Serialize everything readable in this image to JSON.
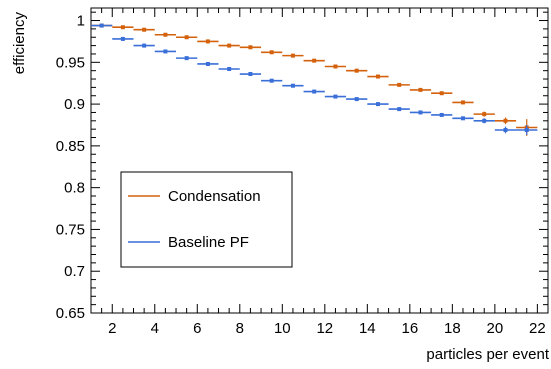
{
  "chart_data": {
    "type": "scatter",
    "title": "",
    "xlabel": "particles per event",
    "ylabel": "efficiency",
    "xlim": [
      1,
      22.5
    ],
    "ylim": [
      0.65,
      1.015
    ],
    "x_ticks": [
      2,
      4,
      6,
      8,
      10,
      12,
      14,
      16,
      18,
      20,
      22
    ],
    "y_ticks": [
      0.65,
      0.7,
      0.75,
      0.8,
      0.85,
      0.9,
      0.95,
      1
    ],
    "y_tick_labels": [
      "0.65",
      "0.7",
      "0.75",
      "0.8",
      "0.85",
      "0.9",
      "0.95",
      "1"
    ],
    "grid": false,
    "legend_position": "lower-left",
    "series": [
      {
        "name": "Condensation",
        "color": "#d4620d",
        "bin_width": 1,
        "x": [
          1.5,
          2.5,
          3.5,
          4.5,
          5.5,
          6.5,
          7.5,
          8.5,
          9.5,
          10.5,
          11.5,
          12.5,
          13.5,
          14.5,
          15.5,
          16.5,
          17.5,
          18.5,
          19.5,
          20.5,
          21.5
        ],
        "y": [
          0.994,
          0.992,
          0.989,
          0.983,
          0.98,
          0.975,
          0.97,
          0.968,
          0.962,
          0.958,
          0.952,
          0.945,
          0.94,
          0.933,
          0.923,
          0.917,
          0.913,
          0.902,
          0.888,
          0.88,
          0.872
        ],
        "err": [
          0.001,
          0.001,
          0.001,
          0.001,
          0.001,
          0.001,
          0.001,
          0.001,
          0.001,
          0.001,
          0.001,
          0.001,
          0.001,
          0.001,
          0.001,
          0.002,
          0.002,
          0.002,
          0.003,
          0.004,
          0.01
        ]
      },
      {
        "name": "Baseline PF",
        "color": "#3a6fd8",
        "bin_width": 1,
        "x": [
          1.5,
          2.5,
          3.5,
          4.5,
          5.5,
          6.5,
          7.5,
          8.5,
          9.5,
          10.5,
          11.5,
          12.5,
          13.5,
          14.5,
          15.5,
          16.5,
          17.5,
          18.5,
          19.5,
          20.5,
          21.5
        ],
        "y": [
          0.994,
          0.978,
          0.97,
          0.963,
          0.955,
          0.948,
          0.942,
          0.936,
          0.928,
          0.922,
          0.915,
          0.909,
          0.906,
          0.9,
          0.894,
          0.89,
          0.887,
          0.883,
          0.88,
          0.869,
          0.869
        ],
        "err": [
          0.001,
          0.001,
          0.001,
          0.001,
          0.001,
          0.001,
          0.001,
          0.001,
          0.001,
          0.001,
          0.001,
          0.001,
          0.001,
          0.001,
          0.001,
          0.001,
          0.002,
          0.002,
          0.003,
          0.004,
          0.006
        ]
      }
    ]
  }
}
